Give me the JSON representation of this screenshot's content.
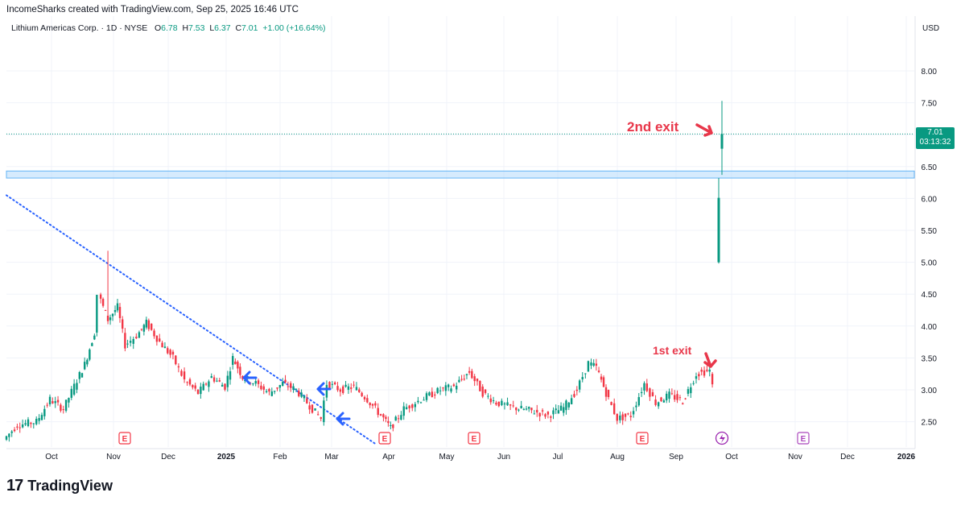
{
  "header": {
    "attribution": "IncomeSharks created with TradingView.com, Sep 25, 2025 16:46 UTC"
  },
  "symbol": {
    "name": "Lithium Americas Corp. · 1D · NYSE",
    "open_label": "O",
    "open": "6.78",
    "high_label": "H",
    "high": "7.53",
    "low_label": "L",
    "low": "6.37",
    "close_label": "C",
    "close": "7.01",
    "change": "+1.00 (+16.64%)"
  },
  "axis": {
    "currency": "USD",
    "price_ticks": [
      "8.00",
      "7.50",
      "6.50",
      "6.00",
      "5.50",
      "5.00",
      "4.50",
      "4.00",
      "3.50",
      "3.00",
      "2.50"
    ],
    "time_ticks": [
      "Oct",
      "Nov",
      "Dec",
      "2025",
      "Feb",
      "Mar",
      "Apr",
      "May",
      "Jun",
      "Jul",
      "Aug",
      "Sep",
      "Oct",
      "Nov",
      "Dec",
      "2026"
    ]
  },
  "price_tag": {
    "price": "7.01",
    "countdown": "03:13:32"
  },
  "annotations": {
    "second_exit": "2nd exit",
    "first_exit": "1st exit"
  },
  "events": {
    "earnings_marker": "E"
  },
  "brand": {
    "logo": "17",
    "name": "TradingView"
  },
  "colors": {
    "up": "#089981",
    "down": "#f23645",
    "annotation": "#e8374a",
    "trendline": "#2962ff",
    "zone": "#bbdefb"
  },
  "chart_data": {
    "type": "candlestick",
    "title": "Lithium Americas Corp. · 1D · NYSE",
    "ylabel": "USD",
    "ylim": [
      2.1,
      8.6
    ],
    "x_range": [
      "2024-09-20",
      "2026-01-05"
    ],
    "last_close": 7.01,
    "trendline": {
      "from": {
        "date": "2024-09-20",
        "price": 6.05
      },
      "to": {
        "date": "2025-03-31",
        "price": 2.15
      },
      "style": "dotted"
    },
    "support_zone": [
      6.32,
      6.43
    ],
    "current_price_line": 7.01,
    "gap_candles": [
      {
        "date": "2025-09-24",
        "open": 5.0,
        "high": 6.32,
        "low": 4.98,
        "close": 6.01
      },
      {
        "date": "2025-09-25",
        "open": 6.78,
        "high": 7.53,
        "low": 6.37,
        "close": 7.01
      }
    ],
    "price_path": [
      {
        "date": "2024-09-20",
        "price": 2.22
      },
      {
        "date": "2024-09-27",
        "price": 2.45
      },
      {
        "date": "2024-10-07",
        "price": 2.5
      },
      {
        "date": "2024-10-14",
        "price": 2.85
      },
      {
        "date": "2024-10-21",
        "price": 2.7
      },
      {
        "date": "2024-10-28",
        "price": 3.15
      },
      {
        "date": "2024-11-01",
        "price": 3.4
      },
      {
        "date": "2024-11-06",
        "price": 3.9
      },
      {
        "date": "2024-11-08",
        "price": 4.5
      },
      {
        "date": "2024-11-13",
        "price": 4.1
      },
      {
        "date": "2024-11-18",
        "price": 4.3
      },
      {
        "date": "2024-11-22",
        "price": 3.7
      },
      {
        "date": "2024-11-28",
        "price": 3.85
      },
      {
        "date": "2024-12-03",
        "price": 4.05
      },
      {
        "date": "2024-12-10",
        "price": 3.75
      },
      {
        "date": "2024-12-17",
        "price": 3.5
      },
      {
        "date": "2024-12-23",
        "price": 3.15
      },
      {
        "date": "2024-12-30",
        "price": 2.95
      },
      {
        "date": "2025-01-06",
        "price": 3.2
      },
      {
        "date": "2025-01-13",
        "price": 3.05
      },
      {
        "date": "2025-01-17",
        "price": 3.5
      },
      {
        "date": "2025-01-22",
        "price": 3.2
      },
      {
        "date": "2025-01-29",
        "price": 3.1
      },
      {
        "date": "2025-02-05",
        "price": 2.95
      },
      {
        "date": "2025-02-12",
        "price": 3.1
      },
      {
        "date": "2025-02-19",
        "price": 3.0
      },
      {
        "date": "2025-02-26",
        "price": 2.75
      },
      {
        "date": "2025-03-04",
        "price": 2.55
      },
      {
        "date": "2025-03-07",
        "price": 3.1
      },
      {
        "date": "2025-03-14",
        "price": 3.0
      },
      {
        "date": "2025-03-21",
        "price": 3.05
      },
      {
        "date": "2025-03-28",
        "price": 2.85
      },
      {
        "date": "2025-04-04",
        "price": 2.6
      },
      {
        "date": "2025-04-09",
        "price": 2.4
      },
      {
        "date": "2025-04-16",
        "price": 2.7
      },
      {
        "date": "2025-04-25",
        "price": 2.85
      },
      {
        "date": "2025-05-05",
        "price": 3.0
      },
      {
        "date": "2025-05-12",
        "price": 3.05
      },
      {
        "date": "2025-05-20",
        "price": 3.28
      },
      {
        "date": "2025-05-27",
        "price": 2.95
      },
      {
        "date": "2025-06-03",
        "price": 2.8
      },
      {
        "date": "2025-06-12",
        "price": 2.72
      },
      {
        "date": "2025-06-20",
        "price": 2.68
      },
      {
        "date": "2025-06-30",
        "price": 2.6
      },
      {
        "date": "2025-07-08",
        "price": 2.72
      },
      {
        "date": "2025-07-15",
        "price": 3.0
      },
      {
        "date": "2025-07-21",
        "price": 3.42
      },
      {
        "date": "2025-07-25",
        "price": 3.35
      },
      {
        "date": "2025-07-30",
        "price": 2.95
      },
      {
        "date": "2025-08-05",
        "price": 2.55
      },
      {
        "date": "2025-08-12",
        "price": 2.6
      },
      {
        "date": "2025-08-19",
        "price": 3.1
      },
      {
        "date": "2025-08-25",
        "price": 2.8
      },
      {
        "date": "2025-09-01",
        "price": 2.92
      },
      {
        "date": "2025-09-08",
        "price": 2.82
      },
      {
        "date": "2025-09-15",
        "price": 3.25
      },
      {
        "date": "2025-09-22",
        "price": 3.3
      },
      {
        "date": "2025-09-23",
        "price": 3.05
      }
    ]
  }
}
